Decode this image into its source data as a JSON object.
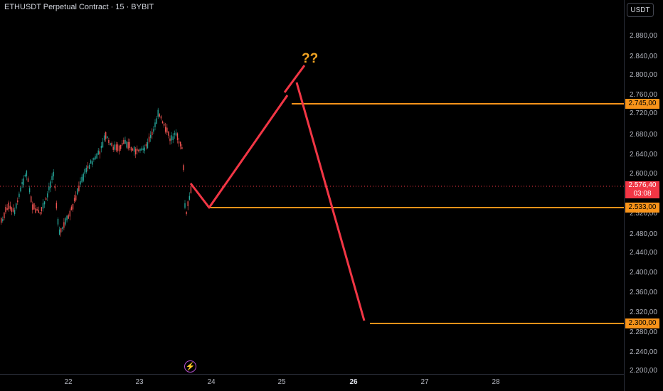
{
  "header": {
    "title": "ETHUSDT Perpetual Contract · 15 · BYBIT"
  },
  "toolbar": {
    "currency": "USDT"
  },
  "price_axis": {
    "labels": [
      "2.880,00",
      "2.840,00",
      "2.800,00",
      "2.760,00",
      "2.720,00",
      "2.680,00",
      "2.640,00",
      "2.600,00",
      "2.520,00",
      "2.480,00",
      "2.440,00",
      "2.400,00",
      "2.360,00",
      "2.320,00",
      "2.280,00",
      "2.240,00",
      "2.200,00"
    ]
  },
  "time_axis": {
    "labels": [
      {
        "text": "22",
        "bold": false
      },
      {
        "text": "23",
        "bold": false
      },
      {
        "text": "24",
        "bold": false
      },
      {
        "text": "25",
        "bold": false
      },
      {
        "text": "26",
        "bold": true
      },
      {
        "text": "27",
        "bold": false
      },
      {
        "text": "28",
        "bold": false
      }
    ]
  },
  "current_price": {
    "value": "2.576,40",
    "countdown": "03:08",
    "color": "#f23645"
  },
  "levels": [
    {
      "value": "2.745,00",
      "color": "#f7931a"
    },
    {
      "value": "2.533,00",
      "color": "#f7931a"
    },
    {
      "value": "2.300,00",
      "color": "#f7931a"
    }
  ],
  "annotation": {
    "text": "??",
    "color": "#f5a623",
    "path_color": "#f23645"
  },
  "colors": {
    "up": "#26a69a",
    "down": "#ef5350",
    "background": "#000000"
  },
  "icons": {
    "alert": "lightning-icon"
  }
}
